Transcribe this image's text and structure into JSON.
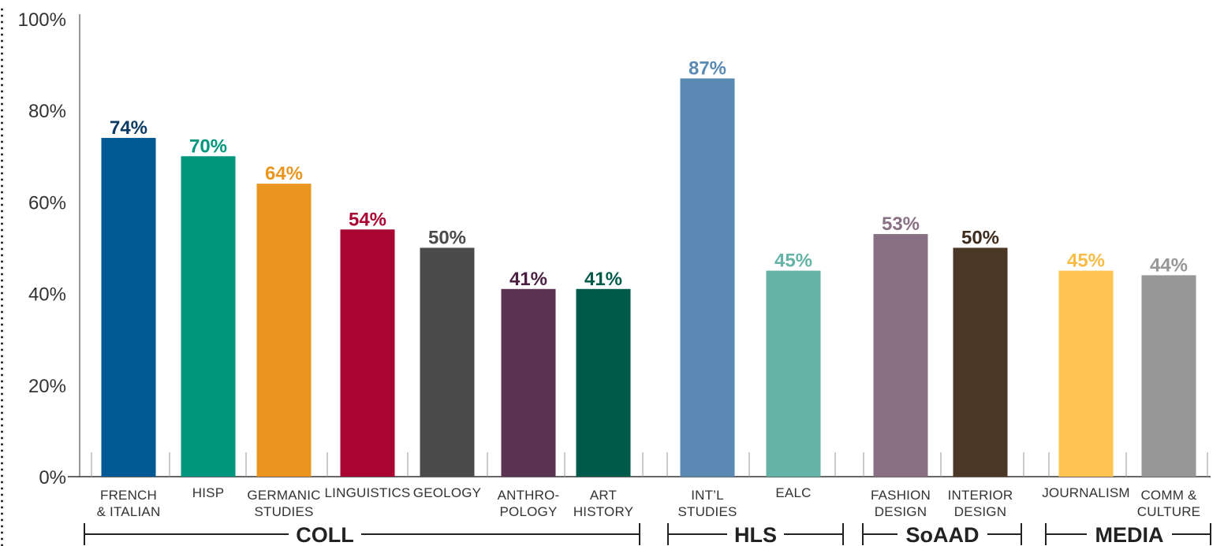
{
  "chart_data": {
    "type": "bar",
    "ylim": [
      0,
      100
    ],
    "y_ticks": [
      {
        "value": 0,
        "label": "0%"
      },
      {
        "value": 20,
        "label": "20%"
      },
      {
        "value": 40,
        "label": "40%"
      },
      {
        "value": 60,
        "label": "60%"
      },
      {
        "value": 80,
        "label": "80%"
      },
      {
        "value": 100,
        "label": "100%"
      }
    ],
    "bars": [
      {
        "label_lines": [
          "FRENCH",
          "& ITALIAN"
        ],
        "value": 74,
        "value_label": "74%",
        "color": "#005993",
        "label_color": "#0b3a63",
        "group": "COLL"
      },
      {
        "label_lines": [
          "HISP"
        ],
        "value": 70,
        "value_label": "70%",
        "color": "#00957d",
        "label_color": "#00957d",
        "group": "COLL"
      },
      {
        "label_lines": [
          "GERMANIC",
          "STUDIES"
        ],
        "value": 64,
        "value_label": "64%",
        "color": "#ea951e",
        "label_color": "#ea951e",
        "group": "COLL"
      },
      {
        "label_lines": [
          "LINGUISTICS"
        ],
        "value": 54,
        "value_label": "54%",
        "color": "#a80532",
        "label_color": "#a80532",
        "group": "COLL"
      },
      {
        "label_lines": [
          "GEOLOGY"
        ],
        "value": 50,
        "value_label": "50%",
        "color": "#4b4b4b",
        "label_color": "#4b4b4b",
        "group": "COLL"
      },
      {
        "label_lines": [
          "ANTHRO-",
          "POLOGY"
        ],
        "value": 41,
        "value_label": "41%",
        "color": "#5c3352",
        "label_color": "#4a1f42",
        "group": "COLL"
      },
      {
        "label_lines": [
          "ART",
          "HISTORY"
        ],
        "value": 41,
        "value_label": "41%",
        "color": "#005a4a",
        "label_color": "#005a4a",
        "group": "COLL"
      },
      {
        "label_lines": [
          "INT’L",
          "STUDIES"
        ],
        "value": 87,
        "value_label": "87%",
        "color": "#5a8ab3",
        "label_color": "#5a8ab3",
        "group": "HLS"
      },
      {
        "label_lines": [
          "EALC"
        ],
        "value": 45,
        "value_label": "45%",
        "color": "#64b3a6",
        "label_color": "#64b3a6",
        "group": "HLS"
      },
      {
        "label_lines": [
          "FASHION",
          "DESIGN"
        ],
        "value": 53,
        "value_label": "53%",
        "color": "#8a7085",
        "label_color": "#8a7085",
        "group": "SoAAD"
      },
      {
        "label_lines": [
          "INTERIOR",
          "DESIGN"
        ],
        "value": 50,
        "value_label": "50%",
        "color": "#4a3726",
        "label_color": "#3e2d1f",
        "group": "SoAAD"
      },
      {
        "label_lines": [
          "JOURNALISM"
        ],
        "value": 45,
        "value_label": "45%",
        "color": "#fec451",
        "label_color": "#f8bc45",
        "group": "MEDIA"
      },
      {
        "label_lines": [
          "COMM &",
          "CULTURE"
        ],
        "value": 44,
        "value_label": "44%",
        "color": "#979797",
        "label_color": "#979797",
        "group": "MEDIA"
      }
    ],
    "groups": [
      "COLL",
      "HLS",
      "SoAAD",
      "MEDIA"
    ],
    "grid": false,
    "legend": "none"
  }
}
